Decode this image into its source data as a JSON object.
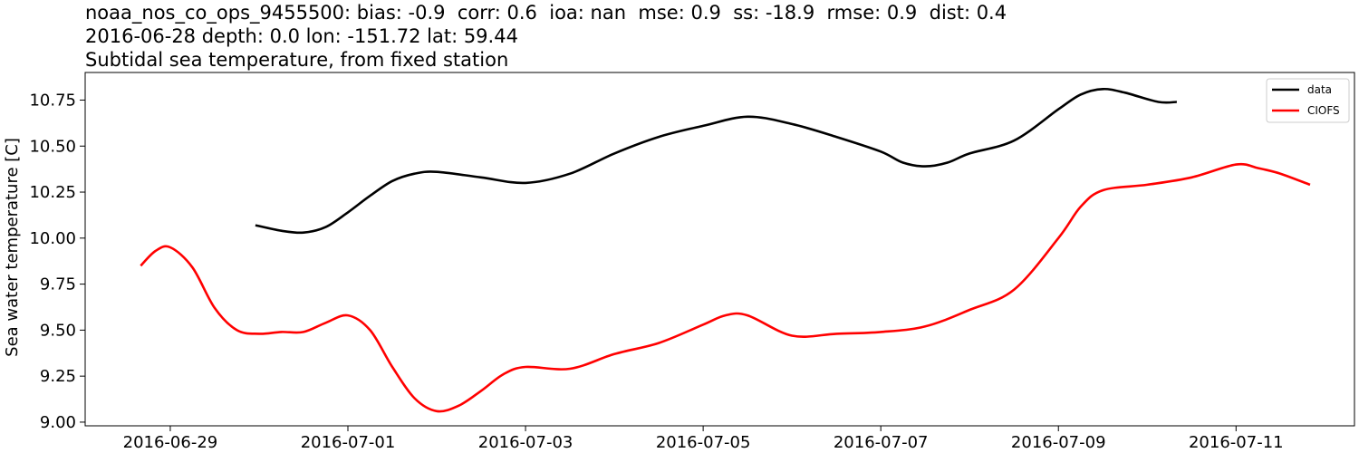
{
  "chart_data": {
    "type": "line",
    "title_lines": [
      "noaa_nos_co_ops_9455500: bias: -0.9  corr: 0.6  ioa: nan  mse: 0.9  ss: -18.9  rmse: 0.9  dist: 0.4",
      "2016-06-28 depth: 0.0 lon: -151.72 lat: 59.44",
      "Subtidal sea temperature, from fixed station"
    ],
    "xlabel": "",
    "ylabel": "Sea water temperature [C]",
    "x_range": [
      "2016-06-28T01:00",
      "2016-07-12T08:00"
    ],
    "ylim": [
      8.98,
      10.9
    ],
    "x_ticks": [
      "2016-06-29",
      "2016-07-01",
      "2016-07-03",
      "2016-07-05",
      "2016-07-07",
      "2016-07-09",
      "2016-07-11"
    ],
    "y_ticks": [
      9.0,
      9.25,
      9.5,
      9.75,
      10.0,
      10.25,
      10.5,
      10.75
    ],
    "y_tick_labels": [
      "9.00",
      "9.25",
      "9.50",
      "9.75",
      "10.00",
      "10.25",
      "10.50",
      "10.75"
    ],
    "grid": false,
    "legend_position": "top-right",
    "series": [
      {
        "name": "data",
        "color": "#000000",
        "points": [
          [
            "2016-06-29T23:00",
            10.07
          ],
          [
            "2016-06-30T06:00",
            10.04
          ],
          [
            "2016-06-30T12:00",
            10.03
          ],
          [
            "2016-06-30T18:00",
            10.06
          ],
          [
            "2016-07-01T00:00",
            10.14
          ],
          [
            "2016-07-01T06:00",
            10.23
          ],
          [
            "2016-07-01T12:00",
            10.31
          ],
          [
            "2016-07-01T18:00",
            10.35
          ],
          [
            "2016-07-02T00:00",
            10.36
          ],
          [
            "2016-07-02T12:00",
            10.33
          ],
          [
            "2016-07-03T00:00",
            10.3
          ],
          [
            "2016-07-03T12:00",
            10.35
          ],
          [
            "2016-07-04T00:00",
            10.46
          ],
          [
            "2016-07-04T12:00",
            10.55
          ],
          [
            "2016-07-05T00:00",
            10.61
          ],
          [
            "2016-07-05T12:00",
            10.66
          ],
          [
            "2016-07-06T00:00",
            10.62
          ],
          [
            "2016-07-06T12:00",
            10.55
          ],
          [
            "2016-07-07T00:00",
            10.47
          ],
          [
            "2016-07-07T06:00",
            10.41
          ],
          [
            "2016-07-07T12:00",
            10.39
          ],
          [
            "2016-07-07T18:00",
            10.41
          ],
          [
            "2016-07-08T00:00",
            10.46
          ],
          [
            "2016-07-08T12:00",
            10.53
          ],
          [
            "2016-07-09T00:00",
            10.7
          ],
          [
            "2016-07-09T06:00",
            10.78
          ],
          [
            "2016-07-09T12:00",
            10.81
          ],
          [
            "2016-07-09T18:00",
            10.79
          ],
          [
            "2016-07-10T03:00",
            10.74
          ],
          [
            "2016-07-10T08:00",
            10.74
          ]
        ]
      },
      {
        "name": "CIOFS",
        "color": "#ff0000",
        "points": [
          [
            "2016-06-28T16:00",
            9.85
          ],
          [
            "2016-06-28T20:00",
            9.93
          ],
          [
            "2016-06-29T00:00",
            9.95
          ],
          [
            "2016-06-29T06:00",
            9.84
          ],
          [
            "2016-06-29T12:00",
            9.62
          ],
          [
            "2016-06-29T18:00",
            9.5
          ],
          [
            "2016-06-30T00:00",
            9.48
          ],
          [
            "2016-06-30T06:00",
            9.49
          ],
          [
            "2016-06-30T12:00",
            9.49
          ],
          [
            "2016-06-30T18:00",
            9.54
          ],
          [
            "2016-07-01T00:00",
            9.58
          ],
          [
            "2016-07-01T06:00",
            9.5
          ],
          [
            "2016-07-01T12:00",
            9.3
          ],
          [
            "2016-07-01T18:00",
            9.13
          ],
          [
            "2016-07-02T00:00",
            9.06
          ],
          [
            "2016-07-02T06:00",
            9.09
          ],
          [
            "2016-07-02T12:00",
            9.17
          ],
          [
            "2016-07-02T18:00",
            9.26
          ],
          [
            "2016-07-03T00:00",
            9.3
          ],
          [
            "2016-07-03T12:00",
            9.29
          ],
          [
            "2016-07-04T00:00",
            9.37
          ],
          [
            "2016-07-04T12:00",
            9.43
          ],
          [
            "2016-07-05T00:00",
            9.53
          ],
          [
            "2016-07-05T06:00",
            9.58
          ],
          [
            "2016-07-05T12:00",
            9.58
          ],
          [
            "2016-07-06T00:00",
            9.47
          ],
          [
            "2016-07-06T12:00",
            9.48
          ],
          [
            "2016-07-07T00:00",
            9.49
          ],
          [
            "2016-07-07T12:00",
            9.52
          ],
          [
            "2016-07-08T00:00",
            9.61
          ],
          [
            "2016-07-08T12:00",
            9.72
          ],
          [
            "2016-07-09T00:00",
            10.0
          ],
          [
            "2016-07-09T06:00",
            10.17
          ],
          [
            "2016-07-09T12:00",
            10.26
          ],
          [
            "2016-07-10T00:00",
            10.29
          ],
          [
            "2016-07-10T12:00",
            10.33
          ],
          [
            "2016-07-11T00:00",
            10.4
          ],
          [
            "2016-07-11T06:00",
            10.38
          ],
          [
            "2016-07-11T12:00",
            10.35
          ],
          [
            "2016-07-11T20:00",
            10.29
          ]
        ]
      }
    ]
  }
}
